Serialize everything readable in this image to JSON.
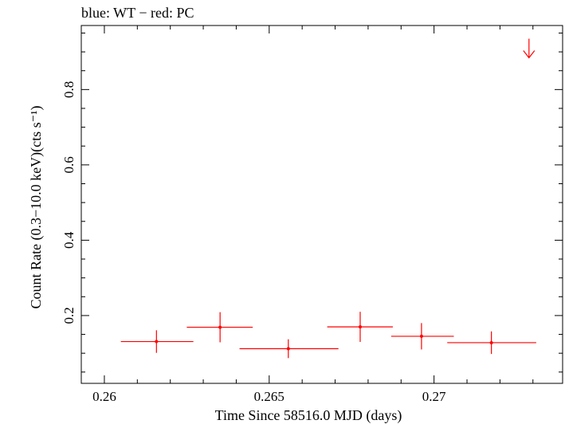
{
  "chart_data": {
    "type": "scatter",
    "title": "blue: WT − red: PC",
    "xlabel": "Time Since 58516.0 MJD (days)",
    "ylabel": "Count Rate (0.3−10.0 keV)(cts s⁻¹)",
    "xlim": [
      0.2593,
      0.2739
    ],
    "ylim": [
      0.02,
      0.97
    ],
    "x_ticks": [
      0.26,
      0.265,
      0.27
    ],
    "x_tick_labels": [
      "0.26",
      "0.265",
      "0.27"
    ],
    "y_ticks": [
      0.2,
      0.4,
      0.6,
      0.8
    ],
    "y_tick_labels": [
      "0.2",
      "0.4",
      "0.6",
      "0.8"
    ],
    "grid": false,
    "series": [
      {
        "name": "PC",
        "color": "#ff0000",
        "points": [
          {
            "x": 0.26158,
            "xerr": [
              0.00108,
              0.00112
            ],
            "y": 0.131,
            "yerr": [
              0.03,
              0.03
            ]
          },
          {
            "x": 0.26351,
            "xerr": [
              0.00101,
              0.00099
            ],
            "y": 0.169,
            "yerr": [
              0.04,
              0.04
            ]
          },
          {
            "x": 0.26558,
            "xerr": [
              0.00148,
              0.00152
            ],
            "y": 0.112,
            "yerr": [
              0.025,
              0.025
            ]
          },
          {
            "x": 0.26776,
            "xerr": [
              0.001,
              0.00099
            ],
            "y": 0.17,
            "yerr": [
              0.04,
              0.04
            ]
          },
          {
            "x": 0.26962,
            "xerr": [
              0.00092,
              0.00098
            ],
            "y": 0.145,
            "yerr": [
              0.035,
              0.035
            ]
          },
          {
            "x": 0.27174,
            "xerr": [
              0.00134,
              0.00136
            ],
            "y": 0.128,
            "yerr": [
              0.03,
              0.03
            ]
          }
        ],
        "upper_limits": [
          {
            "x": 0.27288,
            "y": 0.935
          }
        ]
      }
    ]
  }
}
